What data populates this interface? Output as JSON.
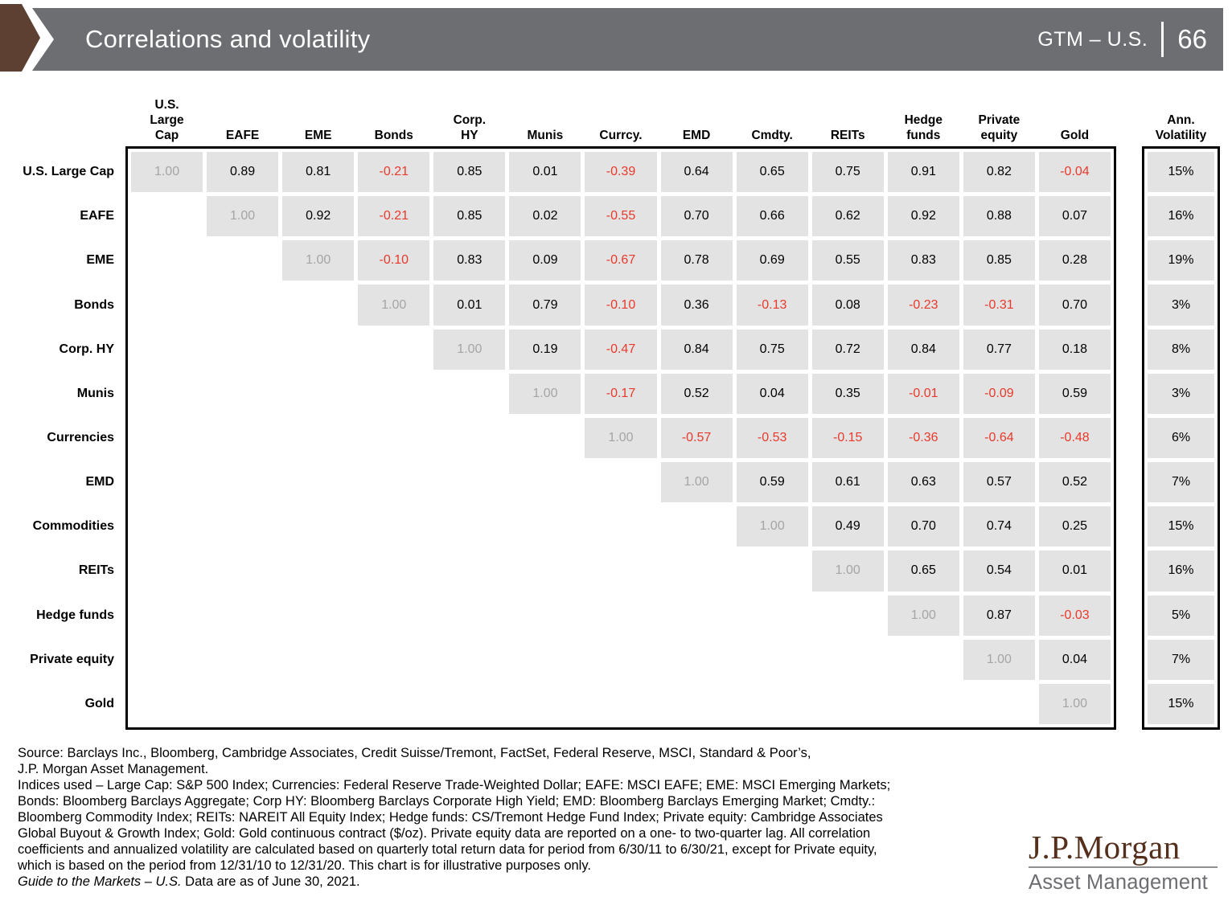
{
  "header": {
    "title": "Correlations and volatility",
    "series_label": "GTM – U.S.",
    "page_number": "66"
  },
  "chart_data": {
    "type": "table",
    "subtype": "correlation_matrix_with_annualized_volatility",
    "title": "Correlations and volatility",
    "columns": [
      "U.S. Large Cap",
      "EAFE",
      "EME",
      "Bonds",
      "Corp. HY",
      "Munis",
      "Currcy.",
      "EMD",
      "Cmdty.",
      "REITs",
      "Hedge funds",
      "Private equity",
      "Gold"
    ],
    "column_headers_display": [
      "U.S.\nLarge\nCap",
      "EAFE",
      "EME",
      "Bonds",
      "Corp.\nHY",
      "Munis",
      "Currcy.",
      "EMD",
      "Cmdty.",
      "REITs",
      "Hedge\nfunds",
      "Private\nequity",
      "Gold"
    ],
    "rows": [
      "U.S. Large Cap",
      "EAFE",
      "EME",
      "Bonds",
      "Corp. HY",
      "Munis",
      "Currencies",
      "EMD",
      "Commodities",
      "REITs",
      "Hedge funds",
      "Private equity",
      "Gold"
    ],
    "matrix": [
      [
        "1.00",
        "0.89",
        "0.81",
        "-0.21",
        "0.85",
        "0.01",
        "-0.39",
        "0.64",
        "0.65",
        "0.75",
        "0.91",
        "0.82",
        "-0.04"
      ],
      [
        null,
        "1.00",
        "0.92",
        "-0.21",
        "0.85",
        "0.02",
        "-0.55",
        "0.70",
        "0.66",
        "0.62",
        "0.92",
        "0.88",
        "0.07"
      ],
      [
        null,
        null,
        "1.00",
        "-0.10",
        "0.83",
        "0.09",
        "-0.67",
        "0.78",
        "0.69",
        "0.55",
        "0.83",
        "0.85",
        "0.28"
      ],
      [
        null,
        null,
        null,
        "1.00",
        "0.01",
        "0.79",
        "-0.10",
        "0.36",
        "-0.13",
        "0.08",
        "-0.23",
        "-0.31",
        "0.70"
      ],
      [
        null,
        null,
        null,
        null,
        "1.00",
        "0.19",
        "-0.47",
        "0.84",
        "0.75",
        "0.72",
        "0.84",
        "0.77",
        "0.18"
      ],
      [
        null,
        null,
        null,
        null,
        null,
        "1.00",
        "-0.17",
        "0.52",
        "0.04",
        "0.35",
        "-0.01",
        "-0.09",
        "0.59"
      ],
      [
        null,
        null,
        null,
        null,
        null,
        null,
        "1.00",
        "-0.57",
        "-0.53",
        "-0.15",
        "-0.36",
        "-0.64",
        "-0.48"
      ],
      [
        null,
        null,
        null,
        null,
        null,
        null,
        null,
        "1.00",
        "0.59",
        "0.61",
        "0.63",
        "0.57",
        "0.52"
      ],
      [
        null,
        null,
        null,
        null,
        null,
        null,
        null,
        null,
        "1.00",
        "0.49",
        "0.70",
        "0.74",
        "0.25"
      ],
      [
        null,
        null,
        null,
        null,
        null,
        null,
        null,
        null,
        null,
        "1.00",
        "0.65",
        "0.54",
        "0.01"
      ],
      [
        null,
        null,
        null,
        null,
        null,
        null,
        null,
        null,
        null,
        null,
        "1.00",
        "0.87",
        "-0.03"
      ],
      [
        null,
        null,
        null,
        null,
        null,
        null,
        null,
        null,
        null,
        null,
        null,
        "1.00",
        "0.04"
      ],
      [
        null,
        null,
        null,
        null,
        null,
        null,
        null,
        null,
        null,
        null,
        null,
        null,
        "1.00"
      ]
    ],
    "volatility_header": "Ann. Volatility",
    "volatility_header_display": "Ann.\nVolatility",
    "volatility": [
      "15%",
      "16%",
      "19%",
      "3%",
      "8%",
      "3%",
      "6%",
      "7%",
      "15%",
      "16%",
      "5%",
      "7%",
      "15%"
    ],
    "legend": "diagonal 1.00 shown in gray; negative correlations shown in red",
    "colors": {
      "cell_background": "#e3e3e4",
      "negative_value": "#e9392a",
      "diagonal_value": "#a5a5a5",
      "banner_gray": "#6d6e71",
      "accent_brown": "#5d4031"
    }
  },
  "footer": {
    "lines": [
      "Source: Barclays Inc., Bloomberg, Cambridge Associates, Credit Suisse/Tremont, FactSet, Federal Reserve, MSCI, Standard & Poor’s,",
      "J.P. Morgan Asset Management.",
      "Indices used – Large Cap: S&P 500 Index; Currencies: Federal Reserve Trade-Weighted Dollar; EAFE: MSCI EAFE; EME: MSCI Emerging Markets;",
      "Bonds: Bloomberg Barclays Aggregate; Corp HY: Bloomberg Barclays Corporate High Yield; EMD: Bloomberg Barclays Emerging Market; Cmdty.:",
      "Bloomberg Commodity Index; REITs: NAREIT All Equity Index; Hedge funds: CS/Tremont Hedge Fund Index; Private equity: Cambridge Associates",
      "Global Buyout & Growth Index; Gold: Gold continuous contract ($/oz). Private equity data are reported on a one- to two-quarter lag. All correlation",
      "coefficients and annualized volatility are calculated based on quarterly total return data for period from 6/30/11 to 6/30/21, except for Private equity,",
      "which is based on the period from 12/31/10 to 12/31/20. This chart is for illustrative purposes only."
    ],
    "last_line_italic": "Guide to the Markets – U.S.",
    "last_line_rest": " Data are as of June 30, 2021."
  },
  "logo": {
    "name": "J.P.Morgan",
    "subtitle": "Asset Management"
  }
}
